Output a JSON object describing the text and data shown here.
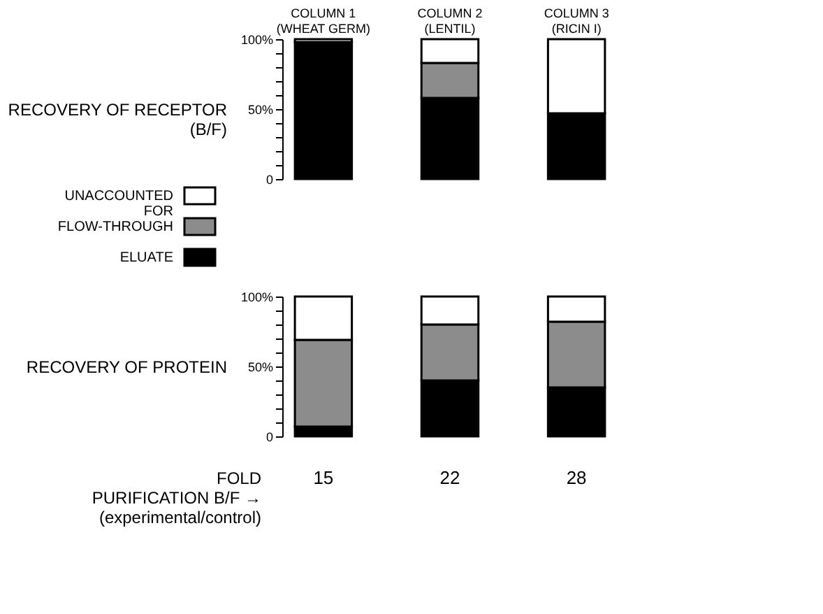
{
  "chart_data": [
    {
      "type": "bar",
      "stacked": true,
      "ylabel": "RECOVERY OF RECEPTOR\n(B/F)",
      "categories": [
        "COLUMN 1\n(WHEAT GERM)",
        "COLUMN 2\n(LENTIL)",
        "COLUMN 3\n(RICIN I)"
      ],
      "series": [
        {
          "color": "#000000",
          "values": [
            98,
            58,
            47
          ]
        },
        {
          "color": "#8c8c8c",
          "values": [
            null,
            25,
            null
          ]
        },
        {
          "color": "#ffffff",
          "values": [
            2,
            17,
            53
          ]
        }
      ],
      "ylim": [
        0,
        100
      ],
      "yticks": [
        {
          "value": 0,
          "label": "0"
        },
        {
          "value": 10,
          "label": null
        },
        {
          "value": 20,
          "label": null
        },
        {
          "value": 30,
          "label": null
        },
        {
          "value": 40,
          "label": null
        },
        {
          "value": 50,
          "label": "50%"
        },
        {
          "value": 60,
          "label": null
        },
        {
          "value": 70,
          "label": null
        },
        {
          "value": 80,
          "label": null
        },
        {
          "value": 90,
          "label": null
        },
        {
          "value": 100,
          "label": "100%"
        }
      ],
      "grid": false
    },
    {
      "type": "bar",
      "stacked": true,
      "ylabel": "RECOVERY OF PROTEIN",
      "categories": [
        null,
        null,
        null
      ],
      "series": [
        {
          "name": "ELUATE",
          "color": "#000000",
          "values": [
            7,
            40,
            35
          ]
        },
        {
          "name": "FLOW-THROUGH",
          "color": "#8c8c8c",
          "values": [
            62,
            40,
            47
          ]
        },
        {
          "name": "UNACCOUNTED FOR",
          "color": "#ffffff",
          "values": [
            31,
            20,
            18
          ]
        }
      ],
      "ylim": [
        0,
        100
      ],
      "yticks": [
        {
          "value": 0,
          "label": "0"
        },
        {
          "value": 10,
          "label": null
        },
        {
          "value": 20,
          "label": null
        },
        {
          "value": 30,
          "label": null
        },
        {
          "value": 40,
          "label": null
        },
        {
          "value": 50,
          "label": "50%"
        },
        {
          "value": 60,
          "label": null
        },
        {
          "value": 70,
          "label": null
        },
        {
          "value": 80,
          "label": null
        },
        {
          "value": 90,
          "label": null
        },
        {
          "value": 100,
          "label": "100%"
        }
      ],
      "grid": false,
      "legend": "top left",
      "tick_labels": "y",
      "annotations": [
        "FOLD\nPURIFICATION  B/F  →\n(experimental/control)",
        "15",
        "22",
        "28"
      ]
    }
  ]
}
